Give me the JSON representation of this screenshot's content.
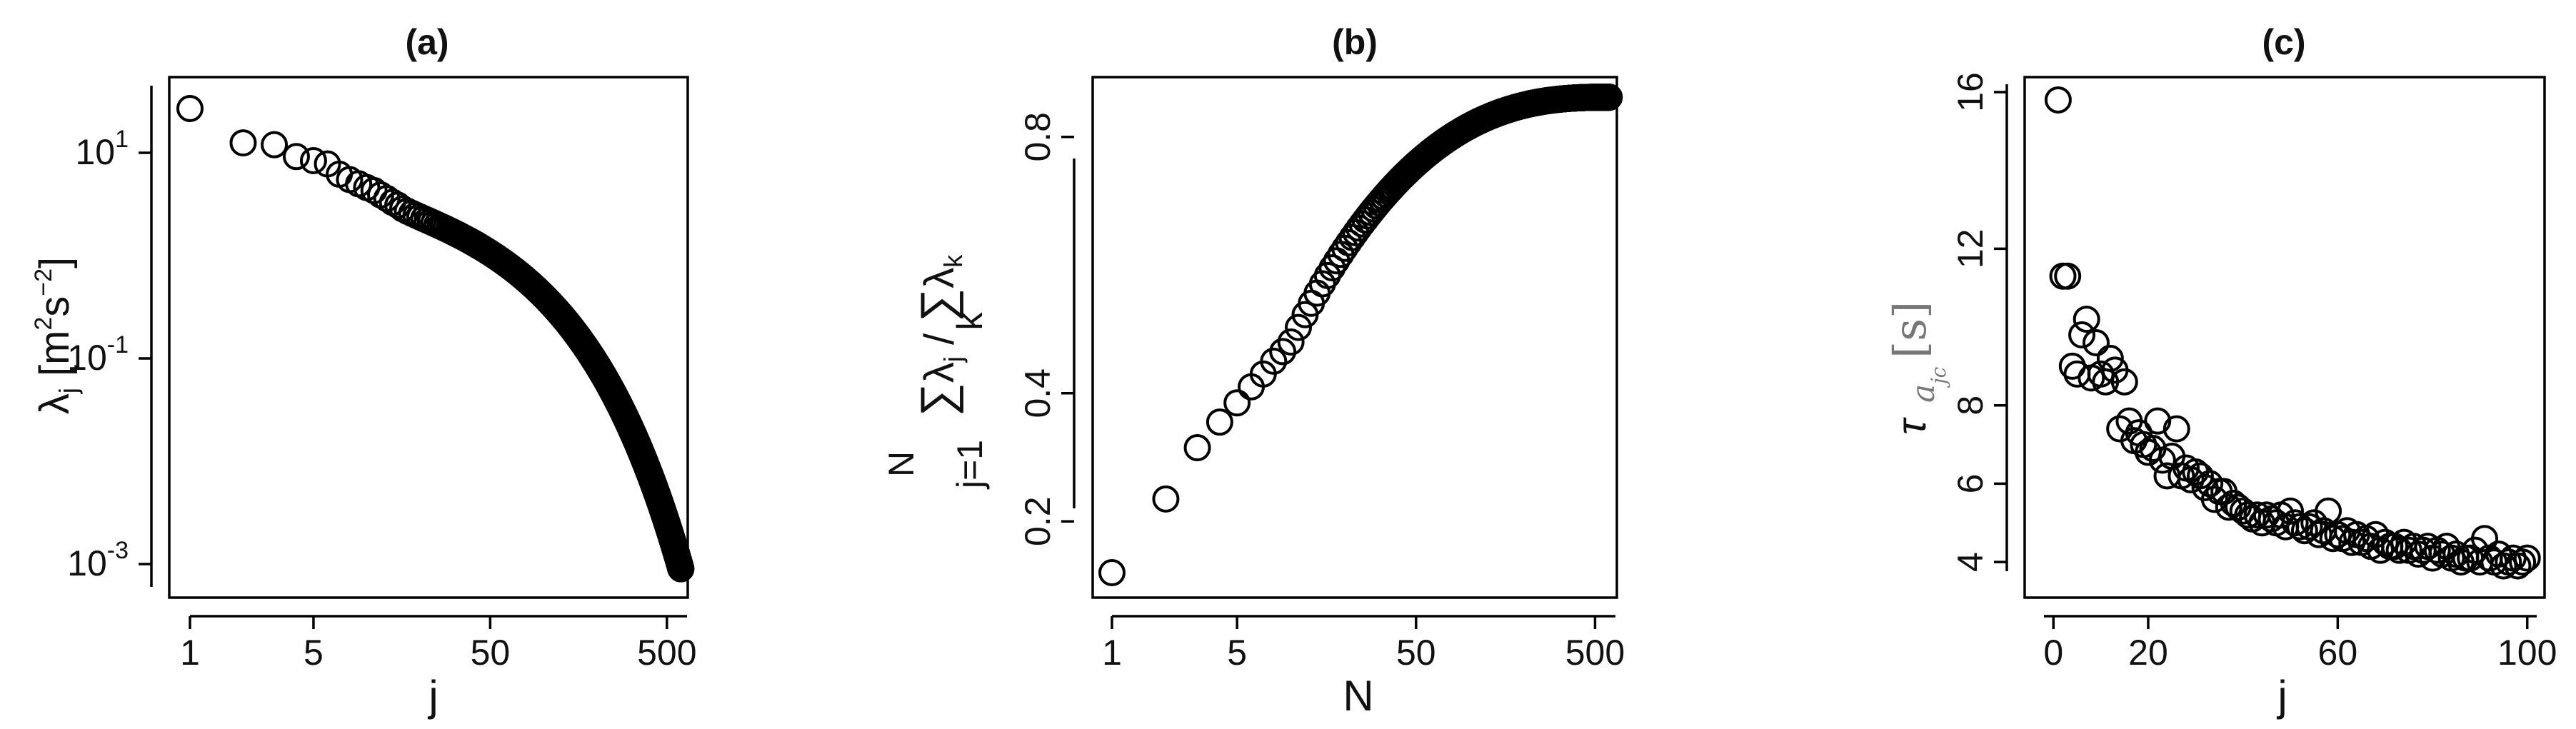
{
  "chart_data": [
    {
      "type": "scatter",
      "title": "(a)",
      "xlabel": "j",
      "ylabel": "λj [m2s−2]",
      "x_scale": "log",
      "y_scale": "log",
      "xlim": [
        1,
        650
      ],
      "ylim": [
        0.0006,
        45
      ],
      "xticks": [
        {
          "v": 1,
          "label": "1"
        },
        {
          "v": 5,
          "label": "5"
        },
        {
          "v": 50,
          "label": "50"
        },
        {
          "v": 500,
          "label": "500"
        }
      ],
      "yticks": [
        {
          "v": 10,
          "base": "10",
          "exp": "1"
        },
        {
          "v": 0.1,
          "base": "10",
          "exp": "-1"
        },
        {
          "v": 0.001,
          "base": "10",
          "exp": "-3"
        }
      ],
      "series": [
        {
          "x_range": [
            1,
            600
          ],
          "y_model": "lambda_decay",
          "y_start": 27,
          "y_end": 0.0009
        }
      ]
    },
    {
      "type": "scatter",
      "title": "(b)",
      "xlabel": "N",
      "ylabel": "∑ j=1 N λj / ∑ k λk",
      "x_scale": "log",
      "y_scale": "linear",
      "xlim": [
        1,
        650
      ],
      "ylim": [
        0.1,
        0.88
      ],
      "xticks": [
        {
          "v": 1,
          "label": "1"
        },
        {
          "v": 5,
          "label": "5"
        },
        {
          "v": 50,
          "label": "50"
        },
        {
          "v": 500,
          "label": "500"
        }
      ],
      "yticks": [
        {
          "v": 0.2,
          "label": "0.2"
        },
        {
          "v": 0.4,
          "label": "0.4"
        },
        {
          "v": 0.8,
          "label": "0.8"
        }
      ],
      "series": [
        {
          "x_range": [
            1,
            600
          ],
          "y_model": "cumulative",
          "y_start": 0.12,
          "y_end": 0.86
        }
      ]
    },
    {
      "type": "scatter",
      "title": "(c)",
      "xlabel": "j",
      "ylabel": "τ a_jc [s]",
      "x_scale": "linear",
      "y_scale": "linear",
      "xlim": [
        -2,
        102
      ],
      "ylim": [
        3.4,
        16.2
      ],
      "xticks": [
        {
          "v": 0,
          "label": "0"
        },
        {
          "v": 20,
          "label": "20"
        },
        {
          "v": 60,
          "label": "60"
        },
        {
          "v": 100,
          "label": "100"
        }
      ],
      "yticks": [
        {
          "v": 4,
          "label": "4"
        },
        {
          "v": 6,
          "label": "6"
        },
        {
          "v": 8,
          "label": "8"
        },
        {
          "v": 12,
          "label": "12"
        },
        {
          "v": 16,
          "label": "16"
        }
      ],
      "series": [
        {
          "x": [
            1,
            2,
            3,
            4,
            5,
            6,
            7,
            8,
            9,
            10,
            11,
            12,
            13,
            14,
            15,
            16,
            17,
            18,
            19,
            20,
            21,
            22,
            23,
            24,
            25,
            26,
            27,
            28,
            29,
            30,
            31,
            32,
            33,
            34,
            35,
            36,
            37,
            38,
            39,
            40,
            41,
            42,
            43,
            44,
            45,
            46,
            47,
            48,
            49,
            50,
            51,
            52,
            53,
            54,
            55,
            56,
            57,
            58,
            59,
            60,
            61,
            62,
            63,
            64,
            65,
            66,
            67,
            68,
            69,
            70,
            71,
            72,
            73,
            74,
            75,
            76,
            77,
            78,
            79,
            80,
            81,
            82,
            83,
            84,
            85,
            86,
            87,
            88,
            89,
            90,
            91,
            92,
            93,
            94,
            95,
            96,
            97,
            98,
            99,
            100
          ],
          "y": [
            15.8,
            11.3,
            11.3,
            9.0,
            8.8,
            9.8,
            10.2,
            8.7,
            9.6,
            8.8,
            8.6,
            9.2,
            8.9,
            7.4,
            8.6,
            7.6,
            7.1,
            7.3,
            7.0,
            6.8,
            6.9,
            7.6,
            6.6,
            6.2,
            6.7,
            7.4,
            6.2,
            6.4,
            6.1,
            6.3,
            6.2,
            5.9,
            6.0,
            5.6,
            5.8,
            5.8,
            5.4,
            5.5,
            5.4,
            5.3,
            5.2,
            5.1,
            5.2,
            5.0,
            5.2,
            5.1,
            5.0,
            5.2,
            4.9,
            5.3,
            5.0,
            4.9,
            4.8,
            4.9,
            5.0,
            4.7,
            4.8,
            5.3,
            4.6,
            4.7,
            4.6,
            4.8,
            4.5,
            4.7,
            4.5,
            4.6,
            4.4,
            4.7,
            4.3,
            4.5,
            4.4,
            4.4,
            4.3,
            4.5,
            4.3,
            4.4,
            4.2,
            4.3,
            4.4,
            4.1,
            4.3,
            4.2,
            4.4,
            4.1,
            4.2,
            4.0,
            4.1,
            4.1,
            4.3,
            4.0,
            4.6,
            4.1,
            4.0,
            4.2,
            3.9,
            4.0,
            4.1,
            3.9,
            4.0,
            4.1
          ]
        }
      ]
    }
  ]
}
